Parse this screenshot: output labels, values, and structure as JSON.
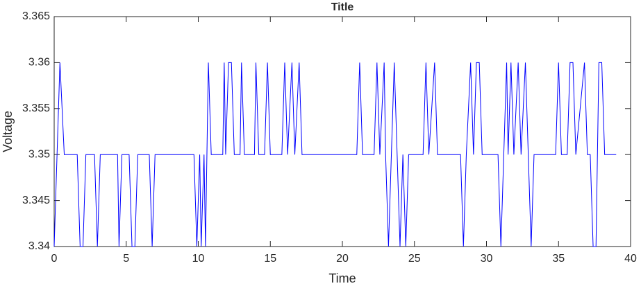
{
  "chart_data": {
    "type": "line",
    "title": "Title",
    "x_label": "Time",
    "y_label": "Voltage",
    "xlim": [
      0,
      40
    ],
    "ylim": [
      3.34,
      3.365
    ],
    "xticks": [
      0,
      5,
      10,
      15,
      20,
      25,
      30,
      35,
      40
    ],
    "yticks": [
      3.34,
      3.345,
      3.35,
      3.355,
      3.36,
      3.365
    ],
    "grid": false,
    "x": [
      0,
      0.4,
      0.7,
      1.6,
      1.8,
      2.0,
      2.2,
      2.8,
      3.0,
      3.2,
      4.4,
      4.5,
      4.7,
      5.2,
      5.4,
      5.6,
      5.8,
      6.6,
      6.8,
      7.0,
      9.7,
      9.9,
      10.1,
      10.2,
      10.4,
      10.5,
      10.7,
      10.9,
      11.7,
      11.8,
      11.9,
      12.1,
      12.3,
      12.5,
      12.9,
      13.0,
      13.2,
      13.9,
      14.0,
      14.2,
      14.6,
      14.8,
      15.0,
      15.8,
      16.0,
      16.2,
      16.5,
      16.7,
      17.0,
      17.2,
      21.0,
      21.2,
      21.4,
      22.2,
      22.4,
      22.6,
      22.9,
      23.0,
      23.2,
      23.4,
      23.6,
      23.8,
      24.0,
      24.2,
      24.4,
      24.6,
      25.6,
      25.8,
      26.0,
      26.4,
      26.6,
      28.2,
      28.4,
      28.6,
      28.9,
      29.1,
      29.3,
      29.5,
      29.7,
      30.8,
      31.0,
      31.2,
      31.4,
      31.5,
      31.7,
      31.9,
      32.2,
      32.4,
      32.7,
      32.9,
      33.1,
      33.3,
      34.8,
      35.0,
      35.2,
      35.6,
      35.8,
      36.0,
      36.2,
      36.8,
      37.0,
      37.2,
      37.4,
      37.6,
      37.8,
      38.0,
      38.2,
      39.0
    ],
    "series": [
      {
        "name": "Voltage",
        "color": "#0000ff",
        "values": [
          3.34,
          3.36,
          3.35,
          3.35,
          3.34,
          3.34,
          3.35,
          3.35,
          3.34,
          3.35,
          3.35,
          3.34,
          3.35,
          3.35,
          3.34,
          3.34,
          3.35,
          3.35,
          3.34,
          3.35,
          3.35,
          3.34,
          3.35,
          3.34,
          3.35,
          3.34,
          3.36,
          3.35,
          3.35,
          3.36,
          3.35,
          3.36,
          3.36,
          3.35,
          3.35,
          3.36,
          3.35,
          3.35,
          3.36,
          3.35,
          3.35,
          3.36,
          3.35,
          3.35,
          3.36,
          3.35,
          3.36,
          3.35,
          3.36,
          3.35,
          3.35,
          3.36,
          3.35,
          3.35,
          3.36,
          3.35,
          3.36,
          3.35,
          3.34,
          3.35,
          3.36,
          3.35,
          3.34,
          3.35,
          3.34,
          3.35,
          3.35,
          3.36,
          3.35,
          3.36,
          3.35,
          3.35,
          3.34,
          3.35,
          3.36,
          3.35,
          3.36,
          3.36,
          3.35,
          3.35,
          3.34,
          3.35,
          3.36,
          3.35,
          3.36,
          3.35,
          3.36,
          3.35,
          3.36,
          3.35,
          3.34,
          3.35,
          3.35,
          3.36,
          3.35,
          3.35,
          3.36,
          3.36,
          3.35,
          3.36,
          3.35,
          3.35,
          3.34,
          3.34,
          3.36,
          3.36,
          3.35,
          3.35
        ]
      }
    ]
  }
}
